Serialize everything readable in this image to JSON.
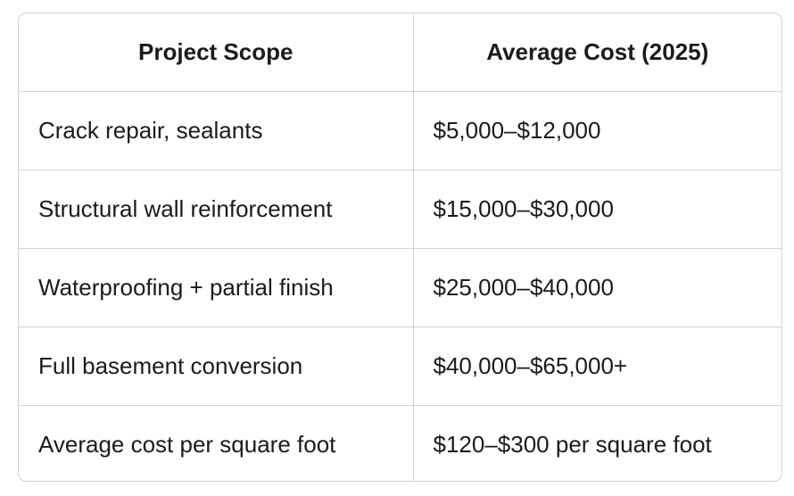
{
  "table": {
    "headers": [
      "Project Scope",
      "Average Cost (2025)"
    ],
    "rows": [
      {
        "scope": "Crack repair, sealants",
        "cost": "$5,000–$12,000"
      },
      {
        "scope": "Structural wall reinforcement",
        "cost": "$15,000–$30,000"
      },
      {
        "scope": "Waterproofing + partial finish",
        "cost": "$25,000–$40,000"
      },
      {
        "scope": "Full basement conversion",
        "cost": "$40,000–$65,000+"
      },
      {
        "scope": "Average cost per square foot",
        "cost": "$120–$300 per square foot"
      }
    ]
  }
}
